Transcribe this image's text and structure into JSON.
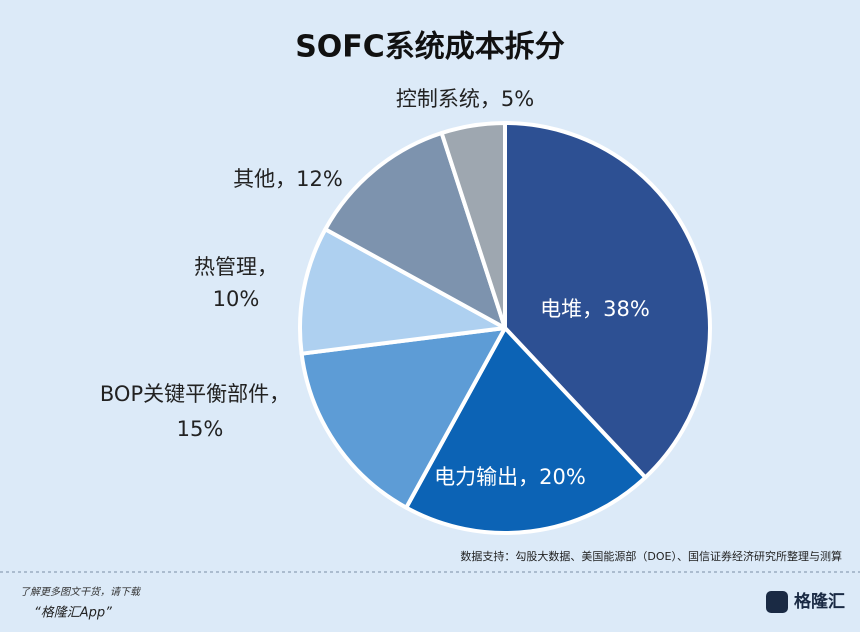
{
  "chart_data": {
    "type": "pie",
    "title": "SOFC系统成本拆分",
    "categories": [
      "电堆",
      "电力输出",
      "BOP关键平衡部件",
      "热管理",
      "其他",
      "控制系统"
    ],
    "values": [
      38,
      20,
      15,
      10,
      12,
      5
    ],
    "value_labels": [
      "38%",
      "20%",
      "15%",
      "10%",
      "12%",
      "5%"
    ],
    "label_separator": "，",
    "colors": [
      "#2d5093",
      "#0c63b5",
      "#5d9cd6",
      "#aed0f0",
      "#7d93ae",
      "#9ea7b0"
    ],
    "source": "数据支持：勾股大数据、美国能源部（DOE）、国信证券经济研究所整理与测算"
  },
  "footer": {
    "promo": "了解更多图文干货，请下载",
    "app": "“格隆汇App”",
    "logo": "格隆汇"
  }
}
